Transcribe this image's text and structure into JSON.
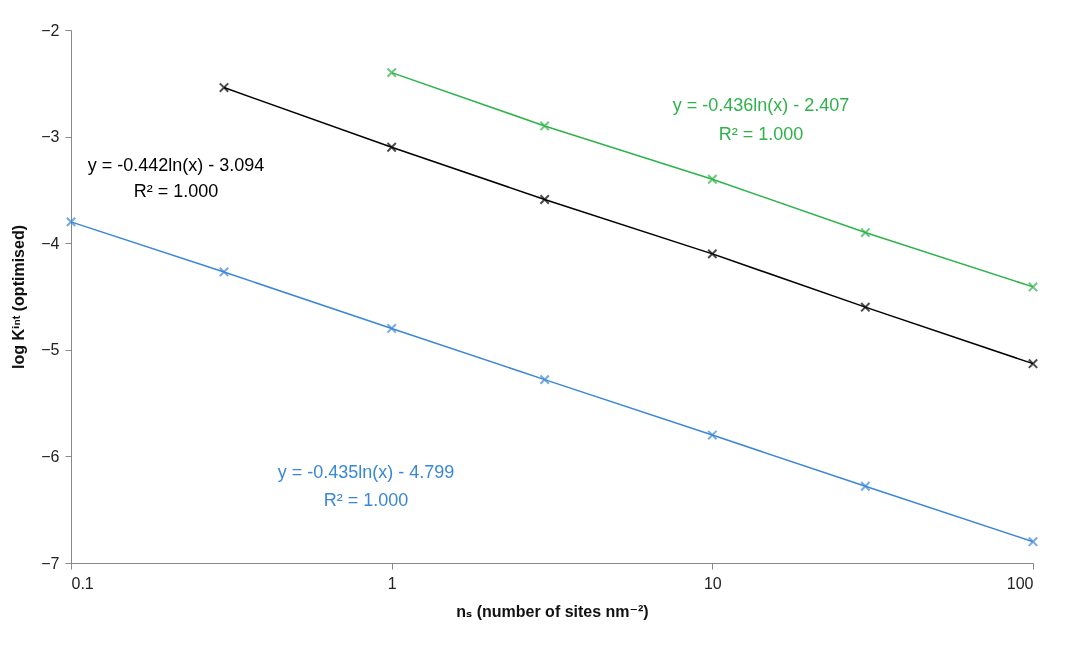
{
  "chart_data": {
    "type": "line",
    "xlabel": "nₛ (number of sites nm⁻²)",
    "ylabel": "log Kⁱⁿᵗ (optimised)",
    "log": "x",
    "xlim": [
      0.1,
      100
    ],
    "xticks": [
      0.1,
      1,
      10,
      100
    ],
    "ylim": [
      -7,
      -2
    ],
    "yticks": [
      -7,
      -6,
      -5,
      -4,
      -3,
      -2
    ],
    "grid": false,
    "legend": false,
    "marker": "cross",
    "line_style": "solid",
    "series": [
      {
        "color": "#3a87d6",
        "x": [
          0.1,
          0.3,
          1,
          3,
          10,
          30,
          100
        ],
        "values": [
          -3.8,
          -4.27,
          -4.8,
          -5.28,
          -5.8,
          -6.28,
          -6.8
        ]
      },
      {
        "color": "#000000",
        "x": [
          0.3,
          1,
          3,
          10,
          30,
          100
        ],
        "values": [
          -2.54,
          -3.1,
          -3.59,
          -4.1,
          -4.6,
          -5.13
        ]
      },
      {
        "color": "#2db34a",
        "x": [
          1,
          3,
          10,
          30,
          100
        ],
        "values": [
          -2.4,
          -2.9,
          -3.4,
          -3.9,
          -4.41
        ]
      }
    ],
    "annotations": [
      "y = -0.435ln(x) - 4.799",
      "R² = 1.000",
      "y = -0.442ln(x) - 3.094",
      "R² = 1.000",
      "y = -0.436ln(x) - 2.407",
      "R² = 1.000"
    ]
  }
}
